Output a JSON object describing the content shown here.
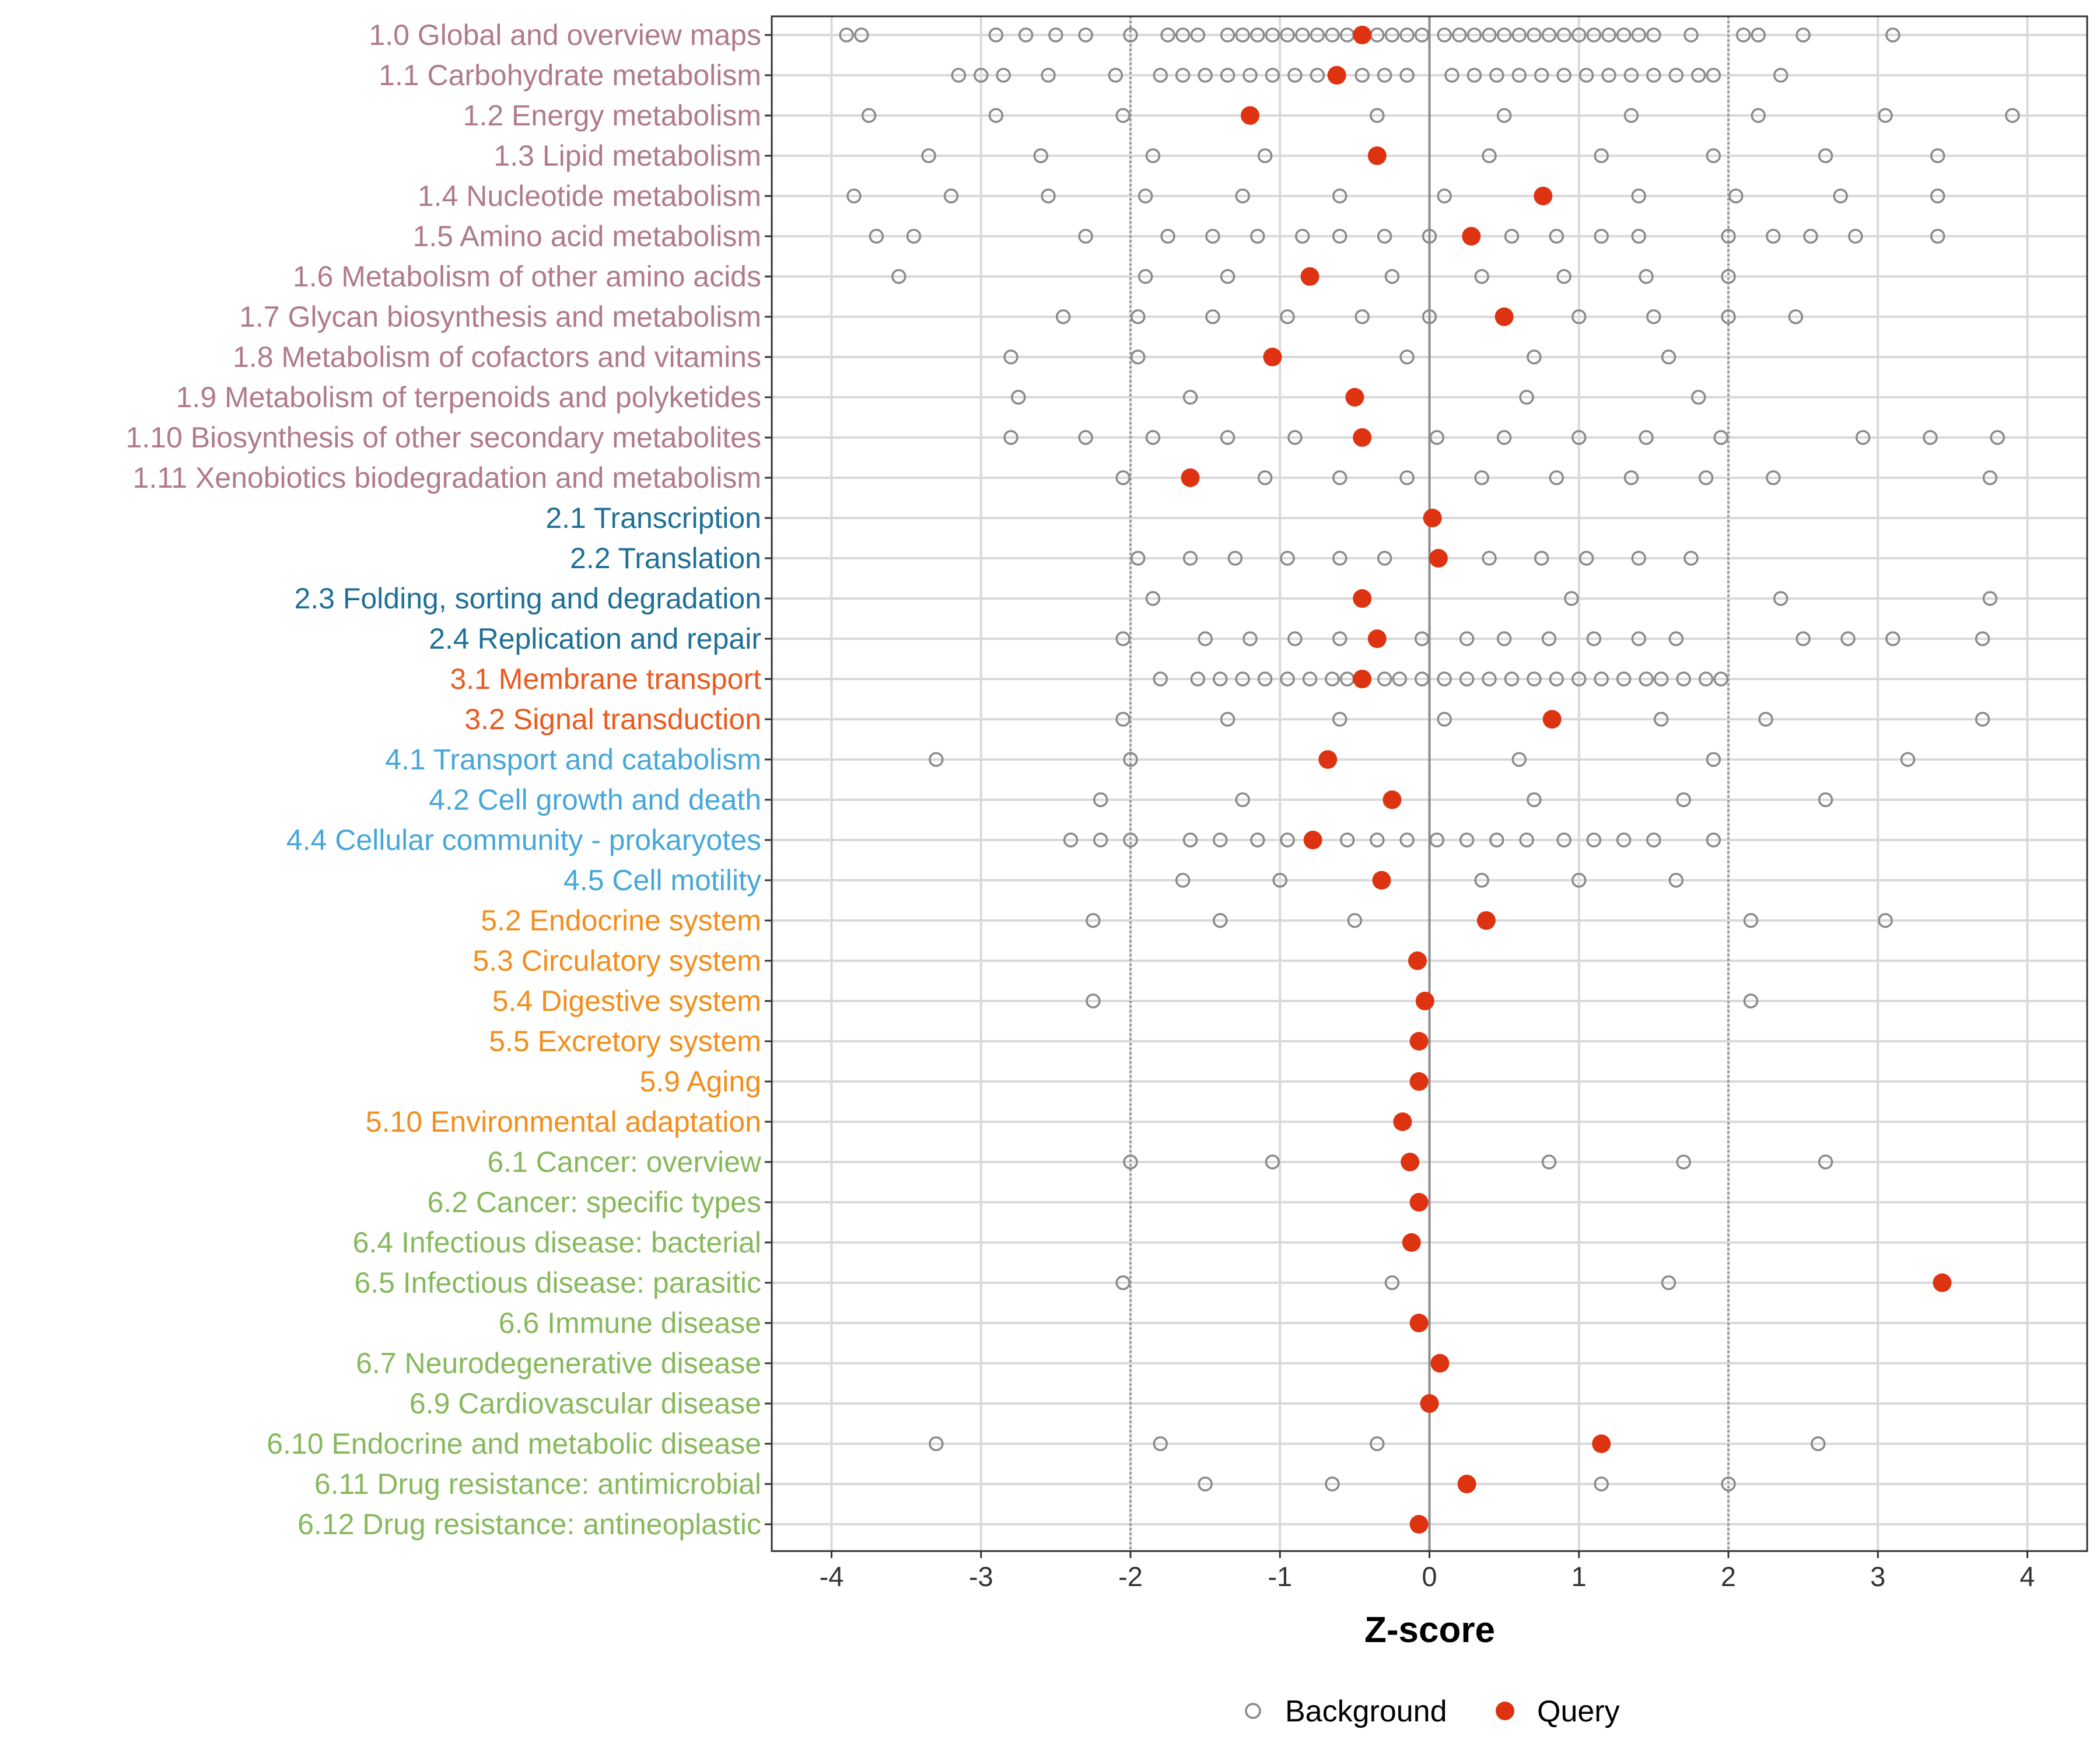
{
  "colors": {
    "group_1": "#b07a8c",
    "group_2": "#1e7097",
    "group_3": "#ea5a1f",
    "group_4": "#46a7d8",
    "group_5": "#f28e1c",
    "group_6": "#86b85c",
    "background_point": "#8a8a8a",
    "query_point": "#dd3311",
    "grid": "#d9d9d9",
    "zero_line": "#8c8c8c",
    "threshold_line": "#8c8c8c"
  },
  "chart_data": {
    "type": "scatter",
    "orientation": "horizontal-dotplot",
    "xlabel": "Z-score",
    "ylabel": "",
    "xlim": [
      -4.4,
      4.4
    ],
    "x_ticks": [
      -4,
      -3,
      -2,
      -1,
      0,
      1,
      2,
      3,
      4
    ],
    "x_tick_labels": [
      "-4",
      "-3",
      "-2",
      "-1",
      "0",
      "1",
      "2",
      "3",
      "4"
    ],
    "reference_lines": [
      {
        "x": -2,
        "style": "dotted"
      },
      {
        "x": 0,
        "style": "solid"
      },
      {
        "x": 2,
        "style": "dotted"
      }
    ],
    "grid": true,
    "legend": {
      "position": "bottom",
      "entries": [
        {
          "label": "Background",
          "marker": "open-circle"
        },
        {
          "label": "Query",
          "marker": "filled-circle"
        }
      ]
    },
    "categories": [
      {
        "label": "1.0 Global and overview maps",
        "group": 1,
        "query": -0.45,
        "background": [
          -3.9,
          -3.8,
          -2.9,
          -2.7,
          -2.5,
          -2.3,
          -2.0,
          -1.75,
          -1.65,
          -1.55,
          -1.35,
          -1.25,
          -1.15,
          -1.05,
          -0.95,
          -0.85,
          -0.75,
          -0.65,
          -0.55,
          -0.35,
          -0.25,
          -0.15,
          -0.05,
          0.1,
          0.2,
          0.3,
          0.4,
          0.5,
          0.6,
          0.7,
          0.8,
          0.9,
          1.0,
          1.1,
          1.2,
          1.3,
          1.4,
          1.5,
          1.75,
          2.1,
          2.2,
          2.5,
          3.1
        ]
      },
      {
        "label": "1.1 Carbohydrate metabolism",
        "group": 1,
        "query": -0.62,
        "background": [
          -3.15,
          -3.0,
          -2.85,
          -2.55,
          -2.1,
          -1.8,
          -1.65,
          -1.5,
          -1.35,
          -1.2,
          -1.05,
          -0.9,
          -0.75,
          -0.45,
          -0.3,
          -0.15,
          0.15,
          0.3,
          0.45,
          0.6,
          0.75,
          0.9,
          1.05,
          1.2,
          1.35,
          1.5,
          1.65,
          1.8,
          1.9,
          2.35
        ]
      },
      {
        "label": "1.2 Energy metabolism",
        "group": 1,
        "query": -1.2,
        "background": [
          -3.75,
          -2.9,
          -2.05,
          -0.35,
          0.5,
          1.35,
          2.2,
          3.05,
          3.9
        ]
      },
      {
        "label": "1.3 Lipid metabolism",
        "group": 1,
        "query": -0.35,
        "background": [
          -3.35,
          -2.6,
          -1.85,
          -1.1,
          0.4,
          1.15,
          1.9,
          2.65,
          3.4
        ]
      },
      {
        "label": "1.4 Nucleotide metabolism",
        "group": 1,
        "query": 0.76,
        "background": [
          -3.85,
          -3.2,
          -2.55,
          -1.9,
          -1.25,
          -0.6,
          0.1,
          1.4,
          2.05,
          2.75,
          3.4
        ]
      },
      {
        "label": "1.5 Amino acid metabolism",
        "group": 1,
        "query": 0.28,
        "background": [
          -3.7,
          -3.45,
          -2.3,
          -1.75,
          -1.45,
          -1.15,
          -0.85,
          -0.6,
          -0.3,
          0.0,
          0.55,
          0.85,
          1.15,
          1.4,
          2.0,
          2.3,
          2.55,
          2.85,
          3.4
        ]
      },
      {
        "label": "1.6 Metabolism of other amino acids",
        "group": 1,
        "query": -0.8,
        "background": [
          -3.55,
          -1.9,
          -1.35,
          -0.25,
          0.35,
          0.9,
          1.45,
          2.0
        ]
      },
      {
        "label": "1.7 Glycan biosynthesis and metabolism",
        "group": 1,
        "query": 0.5,
        "background": [
          -2.45,
          -1.95,
          -1.45,
          -0.95,
          -0.45,
          0.0,
          1.0,
          1.5,
          2.0,
          2.45
        ]
      },
      {
        "label": "1.8 Metabolism of cofactors and vitamins",
        "group": 1,
        "query": -1.05,
        "background": [
          -2.8,
          -1.95,
          -0.15,
          0.7,
          1.6
        ]
      },
      {
        "label": "1.9 Metabolism of terpenoids and polyketides",
        "group": 1,
        "query": -0.5,
        "background": [
          -2.75,
          -1.6,
          0.65,
          1.8
        ]
      },
      {
        "label": "1.10 Biosynthesis of other secondary metabolites",
        "group": 1,
        "query": -0.45,
        "background": [
          -2.8,
          -2.3,
          -1.85,
          -1.35,
          -0.9,
          0.05,
          0.5,
          1.0,
          1.45,
          1.95,
          2.9,
          3.35,
          3.8
        ]
      },
      {
        "label": "1.11 Xenobiotics biodegradation and metabolism",
        "group": 1,
        "query": -1.6,
        "background": [
          -2.05,
          -1.1,
          -0.6,
          -0.15,
          0.35,
          0.85,
          1.35,
          1.85,
          2.3,
          3.75
        ]
      },
      {
        "label": "2.1 Transcription",
        "group": 2,
        "query": 0.02,
        "background": []
      },
      {
        "label": "2.2 Translation",
        "group": 2,
        "query": 0.06,
        "background": [
          -1.95,
          -1.6,
          -1.3,
          -0.95,
          -0.6,
          -0.3,
          0.4,
          0.75,
          1.05,
          1.4,
          1.75
        ]
      },
      {
        "label": "2.3 Folding, sorting and degradation",
        "group": 2,
        "query": -0.45,
        "background": [
          -1.85,
          0.95,
          2.35,
          3.75
        ]
      },
      {
        "label": "2.4 Replication and repair",
        "group": 2,
        "query": -0.35,
        "background": [
          -2.05,
          -1.5,
          -1.2,
          -0.9,
          -0.6,
          -0.05,
          0.25,
          0.5,
          0.8,
          1.1,
          1.4,
          1.65,
          2.5,
          2.8,
          3.1,
          3.7
        ]
      },
      {
        "label": "3.1 Membrane transport",
        "group": 3,
        "query": -0.45,
        "background": [
          -1.8,
          -1.55,
          -1.4,
          -1.25,
          -1.1,
          -0.95,
          -0.8,
          -0.65,
          -0.55,
          -0.3,
          -0.2,
          -0.05,
          0.1,
          0.25,
          0.4,
          0.55,
          0.7,
          0.85,
          1.0,
          1.15,
          1.3,
          1.45,
          1.55,
          1.7,
          1.85,
          1.95
        ]
      },
      {
        "label": "3.2 Signal transduction",
        "group": 3,
        "query": 0.82,
        "background": [
          -2.05,
          -1.35,
          -0.6,
          0.1,
          1.55,
          2.25,
          3.7
        ]
      },
      {
        "label": "4.1 Transport and catabolism",
        "group": 4,
        "query": -0.68,
        "background": [
          -3.3,
          -2.0,
          0.6,
          1.9,
          3.2
        ]
      },
      {
        "label": "4.2 Cell growth and death",
        "group": 4,
        "query": -0.25,
        "background": [
          -2.2,
          -1.25,
          0.7,
          1.7,
          2.65
        ]
      },
      {
        "label": "4.4 Cellular community - prokaryotes",
        "group": 4,
        "query": -0.78,
        "background": [
          -2.4,
          -2.2,
          -2.0,
          -1.6,
          -1.4,
          -1.15,
          -0.95,
          -0.55,
          -0.35,
          -0.15,
          0.05,
          0.25,
          0.45,
          0.65,
          0.9,
          1.1,
          1.3,
          1.5,
          1.9
        ]
      },
      {
        "label": "4.5 Cell motility",
        "group": 4,
        "query": -0.32,
        "background": [
          -1.65,
          -1.0,
          0.35,
          1.0,
          1.65
        ]
      },
      {
        "label": "5.2 Endocrine system",
        "group": 5,
        "query": 0.38,
        "background": [
          -2.25,
          -1.4,
          -0.5,
          2.15,
          3.05
        ]
      },
      {
        "label": "5.3 Circulatory system",
        "group": 5,
        "query": -0.08,
        "background": []
      },
      {
        "label": "5.4 Digestive system",
        "group": 5,
        "query": -0.03,
        "background": [
          -2.25,
          2.15
        ]
      },
      {
        "label": "5.5 Excretory system",
        "group": 5,
        "query": -0.07,
        "background": []
      },
      {
        "label": "5.9 Aging",
        "group": 5,
        "query": -0.07,
        "background": []
      },
      {
        "label": "5.10 Environmental adaptation",
        "group": 5,
        "query": -0.18,
        "background": []
      },
      {
        "label": "6.1 Cancer: overview",
        "group": 6,
        "query": -0.13,
        "background": [
          -2.0,
          -1.05,
          0.8,
          1.7,
          2.65
        ]
      },
      {
        "label": "6.2 Cancer: specific types",
        "group": 6,
        "query": -0.07,
        "background": []
      },
      {
        "label": "6.4 Infectious disease: bacterial",
        "group": 6,
        "query": -0.12,
        "background": []
      },
      {
        "label": "6.5 Infectious disease: parasitic",
        "group": 6,
        "query": 3.43,
        "background": [
          -2.05,
          -0.25,
          1.6
        ]
      },
      {
        "label": "6.6 Immune disease",
        "group": 6,
        "query": -0.07,
        "background": []
      },
      {
        "label": "6.7 Neurodegenerative disease",
        "group": 6,
        "query": 0.07,
        "background": []
      },
      {
        "label": "6.9 Cardiovascular disease",
        "group": 6,
        "query": 0.0,
        "background": []
      },
      {
        "label": "6.10 Endocrine and metabolic disease",
        "group": 6,
        "query": 1.15,
        "background": [
          -3.3,
          -1.8,
          -0.35,
          2.6
        ]
      },
      {
        "label": "6.11 Drug resistance: antimicrobial",
        "group": 6,
        "query": 0.25,
        "background": [
          -1.5,
          -0.65,
          1.15,
          2.0
        ]
      },
      {
        "label": "6.12 Drug resistance: antineoplastic",
        "group": 6,
        "query": -0.07,
        "background": []
      }
    ]
  }
}
